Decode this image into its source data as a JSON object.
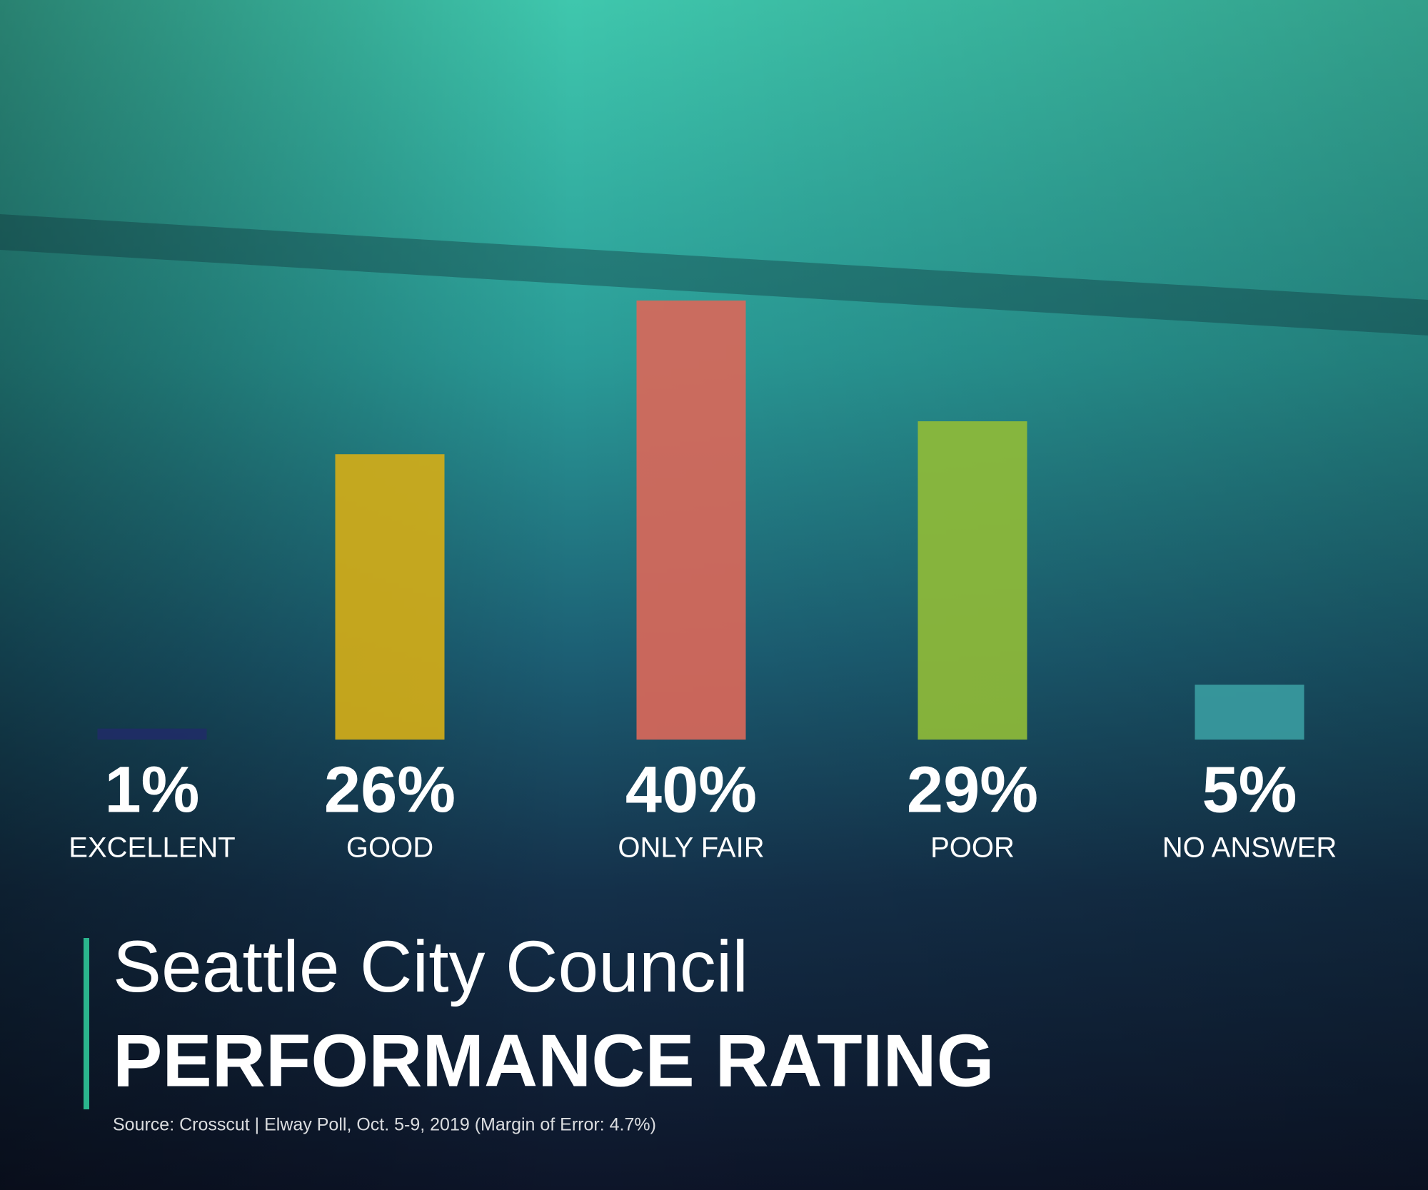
{
  "chart_data": {
    "type": "bar",
    "title": "Seattle City Council",
    "subtitle": "PERFORMANCE RATING",
    "source": "Source: Crosscut | Elway Poll, Oct. 5-9, 2019 (Margin of Error: 4.7%)",
    "categories": [
      "EXCELLENT",
      "GOOD",
      "ONLY FAIR",
      "POOR",
      "NO ANSWER"
    ],
    "values": [
      1,
      26,
      40,
      29,
      5
    ],
    "value_labels": [
      "1%",
      "26%",
      "40%",
      "29%",
      "5%"
    ],
    "colors": [
      "#1f2d66",
      "#d2ad18",
      "#d8685a",
      "#8fbb38",
      "#3a9b9f"
    ]
  }
}
